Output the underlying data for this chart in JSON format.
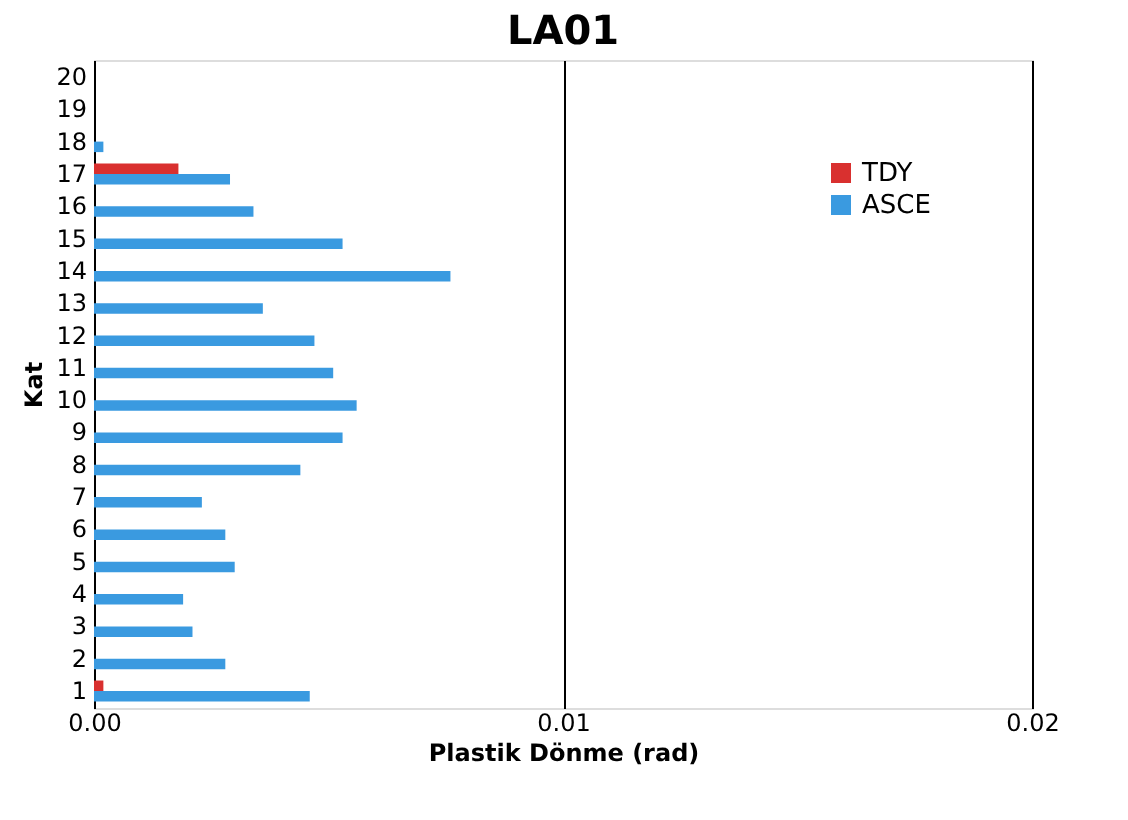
{
  "chart_data": {
    "type": "bar",
    "orientation": "horizontal",
    "title": "LA01",
    "xlabel": "Plastik Dönme (rad)",
    "ylabel": "Kat",
    "categories": [
      "20",
      "19",
      "18",
      "17",
      "16",
      "15",
      "14",
      "13",
      "12",
      "11",
      "10",
      "9",
      "8",
      "7",
      "6",
      "5",
      "4",
      "3",
      "2",
      "1"
    ],
    "series": [
      {
        "name": "TDY",
        "color": "#d9302f",
        "values": [
          null,
          null,
          null,
          0.0018,
          null,
          null,
          null,
          null,
          null,
          null,
          null,
          null,
          null,
          null,
          null,
          null,
          null,
          null,
          null,
          0.0002
        ]
      },
      {
        "name": "ASCE",
        "color": "#3a9ae0",
        "values": [
          null,
          null,
          0.0002,
          0.0029,
          0.0034,
          0.0053,
          0.0076,
          0.0036,
          0.0047,
          0.0051,
          0.0056,
          0.0053,
          0.0044,
          0.0023,
          0.0028,
          0.003,
          0.0019,
          0.0021,
          0.0028,
          0.0046
        ]
      }
    ],
    "xlim": [
      0,
      0.02
    ],
    "xticks": [
      {
        "value": 0,
        "label": "0.00"
      },
      {
        "value": 0.01,
        "label": "0.01"
      },
      {
        "value": 0.02,
        "label": "0.02"
      }
    ],
    "grid": "x",
    "legend": "top right"
  }
}
